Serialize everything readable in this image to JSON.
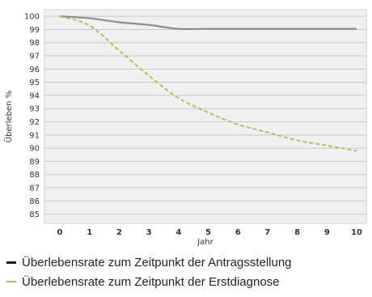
{
  "chart_data": {
    "type": "line",
    "title": "",
    "xlabel": "Jahr",
    "ylabel": "Überleben %",
    "xlim": [
      0,
      10
    ],
    "ylim": [
      84.3,
      100.5
    ],
    "x_ticks": [
      0,
      1,
      2,
      3,
      4,
      5,
      6,
      7,
      8,
      9,
      10
    ],
    "y_ticks": [
      85,
      86,
      87,
      88,
      89,
      90,
      91,
      92,
      93,
      94,
      95,
      96,
      97,
      98,
      99,
      100
    ],
    "grid": true,
    "legend_position": "bottom",
    "series": [
      {
        "name": "Überlebensrate zum Zeitpunkt der Antragsstellung",
        "style": "solid",
        "color": "#8c8c8c",
        "x": [
          0,
          1,
          2,
          3,
          4,
          5,
          6,
          7,
          8,
          9,
          10
        ],
        "y": [
          100,
          99.85,
          99.55,
          99.35,
          99.05,
          99.05,
          99.05,
          99.05,
          99.05,
          99.05,
          99.05
        ]
      },
      {
        "name": "Überlebensrate zum Zeitpunkt der Erstdiagnose",
        "style": "dashed",
        "color": "#9ccc52",
        "x": [
          0,
          1,
          2,
          3,
          4,
          5,
          6,
          7,
          8,
          9,
          10
        ],
        "y": [
          100,
          99.3,
          97.4,
          95.5,
          93.8,
          92.7,
          91.8,
          91.2,
          90.6,
          90.2,
          89.8
        ]
      }
    ]
  },
  "legend": {
    "items": [
      {
        "label": "Überlebensrate zum Zeitpunkt der Antragsstellung"
      },
      {
        "label": "Überlebensrate zum Zeitpunkt der Erstdiagnose"
      }
    ]
  }
}
